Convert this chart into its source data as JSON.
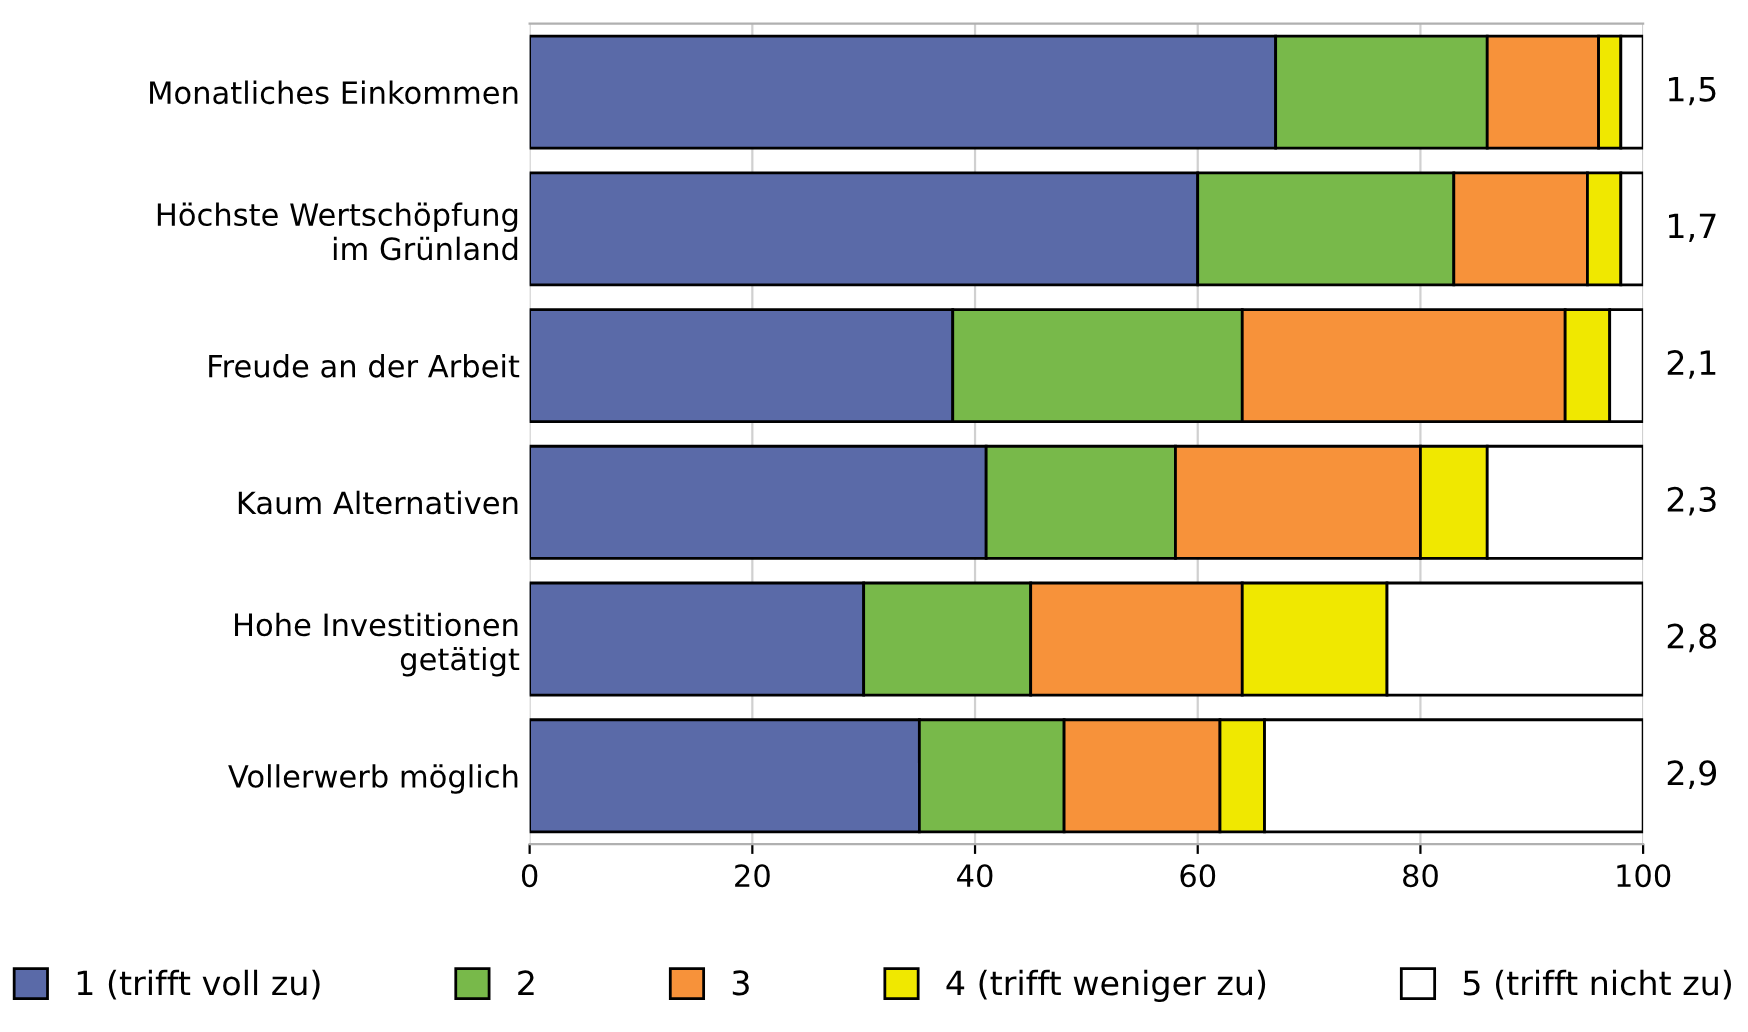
{
  "chart_data": {
    "type": "bar",
    "orientation": "horizontal",
    "stacked": true,
    "grid": "x",
    "legend": "bottom",
    "categories": [
      "Monatliches Einkommen",
      "Höchste Wertschöpfung\nim Grünland",
      "Freude an der Arbeit",
      "Kaum Alternativen",
      "Hohe Investitionen\ngetätigt",
      "Vollerwerb möglich"
    ],
    "series": [
      {
        "name": "1 (trifft voll zu)",
        "color": "#5a6aa8",
        "values": [
          67,
          60,
          38,
          41,
          30,
          35
        ]
      },
      {
        "name": "2",
        "color": "#78b94a",
        "values": [
          19,
          23,
          26,
          17,
          15,
          13
        ]
      },
      {
        "name": "3",
        "color": "#f7923a",
        "values": [
          10,
          12,
          29,
          22,
          19,
          14
        ]
      },
      {
        "name": "4 (trifft weniger zu)",
        "color": "#f0e800",
        "values": [
          2,
          3,
          4,
          6,
          13,
          4
        ]
      },
      {
        "name": "5 (trifft nicht zu)",
        "color": "#ffffff",
        "values": [
          2,
          2,
          3,
          14,
          23,
          34
        ]
      }
    ],
    "xlim": [
      0,
      100
    ],
    "xticks": [
      0,
      20,
      40,
      60,
      80,
      100
    ],
    "annotations": [
      "1,5",
      "1,7",
      "2,1",
      "2,3",
      "2,8",
      "2,9"
    ]
  }
}
